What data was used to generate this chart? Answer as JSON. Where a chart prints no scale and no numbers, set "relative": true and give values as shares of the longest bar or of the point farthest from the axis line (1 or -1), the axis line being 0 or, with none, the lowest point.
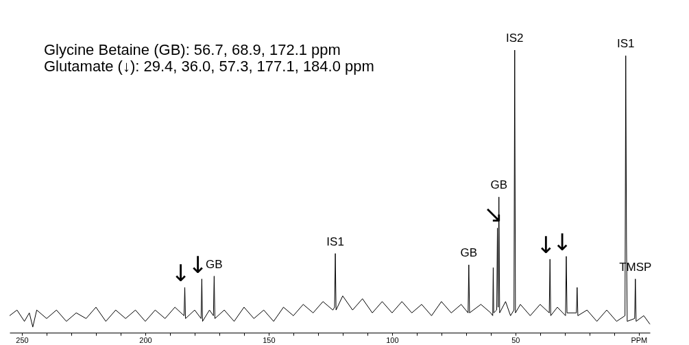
{
  "chart_data": {
    "type": "line",
    "relative": true,
    "title": "Glycine Betaine (GB): 56.7, 68.9, 172.1 ppm",
    "subtitle": "Glutamate (↓): 29.4, 36.0, 57.3, 177.1, 184.0 ppm",
    "xlim": [
      255,
      -4.5
    ],
    "xticks": [
      250,
      {
        "value": 240,
        "label": null
      },
      {
        "value": 230,
        "label": null
      },
      {
        "value": 220,
        "label": null
      },
      {
        "value": 210,
        "label": null
      },
      200,
      {
        "value": 190,
        "label": null
      },
      {
        "value": 180,
        "label": null
      },
      {
        "value": 170,
        "label": null
      },
      {
        "value": 160,
        "label": null
      },
      150,
      {
        "value": 140,
        "label": null
      },
      {
        "value": 130,
        "label": null
      },
      {
        "value": 120,
        "label": null
      },
      {
        "value": 110,
        "label": null
      },
      100,
      {
        "value": 90,
        "label": null
      },
      {
        "value": 80,
        "label": null
      },
      {
        "value": 70,
        "label": null
      },
      {
        "value": 60,
        "label": null
      },
      50,
      {
        "value": 40,
        "label": null
      },
      {
        "value": 30,
        "label": null
      },
      {
        "value": 20,
        "label": null
      },
      {
        "value": 10,
        "label": null
      },
      {
        "value": 0,
        "label": "PPM"
      }
    ],
    "grid": false,
    "legend": false,
    "marker": "none",
    "line_style": "solid",
    "series": [
      {
        "color": "#000000",
        "x": [
          255,
          252,
          249,
          247,
          245.6,
          244,
          240,
          236,
          232,
          228,
          224,
          220,
          216,
          212,
          208,
          204,
          200,
          196,
          192,
          188,
          184.3,
          184.0,
          183.7,
          180,
          177.4,
          177.1,
          176.8,
          174,
          172.4,
          172.1,
          171.8,
          168,
          164,
          160,
          156,
          152,
          148,
          144,
          140,
          136,
          132,
          128,
          124,
          123.3,
          123,
          122.7,
          120,
          116,
          112,
          108,
          104,
          100,
          96,
          92,
          88,
          84,
          80,
          76,
          72,
          69.2,
          68.9,
          68.6,
          64,
          60,
          59.2,
          59,
          58.8,
          57.6,
          57.3,
          57.0,
          56.7,
          56.4,
          54,
          52,
          50.6,
          50.3,
          50.0,
          48,
          44,
          40,
          36.3,
          36.0,
          35.7,
          33,
          29.7,
          29.4,
          29.1,
          25.3,
          25,
          24.7,
          21,
          17,
          13,
          9,
          5.6,
          5.3,
          5.0,
          4.7,
          1.7,
          1.4,
          1.1,
          -2,
          -4.5
        ],
        "values": [
          0.06,
          0.08,
          0.04,
          0.07,
          0.02,
          0.08,
          0.05,
          0.08,
          0.04,
          0.07,
          0.05,
          0.09,
          0.04,
          0.08,
          0.05,
          0.08,
          0.04,
          0.08,
          0.05,
          0.09,
          0.06,
          0.16,
          0.05,
          0.08,
          0.05,
          0.19,
          0.04,
          0.08,
          0.06,
          0.2,
          0.05,
          0.08,
          0.04,
          0.09,
          0.05,
          0.08,
          0.04,
          0.09,
          0.06,
          0.1,
          0.07,
          0.11,
          0.08,
          0.09,
          0.28,
          0.08,
          0.13,
          0.08,
          0.12,
          0.07,
          0.11,
          0.07,
          0.11,
          0.07,
          0.1,
          0.06,
          0.11,
          0.07,
          0.1,
          0.07,
          0.24,
          0.07,
          0.1,
          0.07,
          0.06,
          0.23,
          0.07,
          0.08,
          0.37,
          0.09,
          0.48,
          0.07,
          0.11,
          0.06,
          0.08,
          1.0,
          0.07,
          0.1,
          0.06,
          0.1,
          0.07,
          0.26,
          0.06,
          0.09,
          0.06,
          0.27,
          0.07,
          0.07,
          0.16,
          0.06,
          0.08,
          0.04,
          0.08,
          0.04,
          0.06,
          0.98,
          0.33,
          0.04,
          0.05,
          0.19,
          0.04,
          0.06,
          0.03
        ]
      }
    ],
    "annotations": [
      {
        "text": "IS2",
        "x": 50.3,
        "y": 1.0
      },
      {
        "text": "IS1",
        "x": 5.3,
        "y": 0.98
      },
      {
        "text": "IS1",
        "x": 123,
        "y": 0.28
      },
      {
        "text": "GB",
        "x": 56.7,
        "y": 0.48
      },
      {
        "text": "GB",
        "x": 68.9,
        "y": 0.24
      },
      {
        "text": "GB",
        "x": 172.1,
        "y": 0.2
      },
      {
        "text": "TMSP",
        "x": 1.4,
        "y": 0.19
      },
      {
        "text": "↓",
        "x": 184.0,
        "y": 0.16
      },
      {
        "text": "↓",
        "x": 177.1,
        "y": 0.19
      },
      {
        "text": "↓",
        "x": 36.0,
        "y": 0.26
      },
      {
        "text": "↓",
        "x": 29.4,
        "y": 0.27
      },
      {
        "text": "↘",
        "x": 57.3,
        "y": 0.37
      }
    ]
  }
}
